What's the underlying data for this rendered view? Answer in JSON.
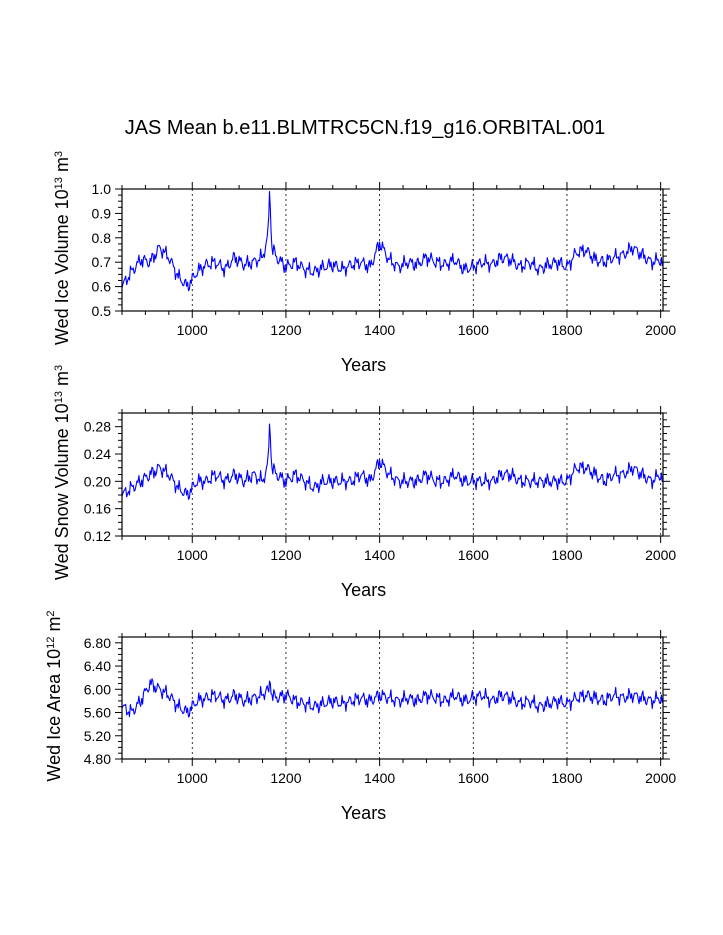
{
  "page_title": "JAS Mean b.e11.BLMTRC5CN.f19_g16.ORBITAL.001",
  "colors": {
    "series": "#0000ff",
    "axes": "#000000",
    "grid": "#000000"
  },
  "chart_data": [
    {
      "type": "line",
      "name": "wed-ice-volume",
      "ylabel": {
        "base": "Wed Ice Volume 10",
        "exp": "13",
        "unit": " m",
        "unit_exp": "3"
      },
      "xlabel": "Years",
      "xlim": [
        850,
        2005
      ],
      "ylim": [
        0.5,
        1.0
      ],
      "xticks": [
        1000,
        1200,
        1400,
        1600,
        1800,
        2000
      ],
      "xtick_labels": [
        "1000",
        "1200",
        "1400",
        "1600",
        "1800",
        "2000"
      ],
      "yticks": [
        0.5,
        0.6,
        0.7,
        0.8,
        0.9,
        1.0
      ],
      "ytick_labels": [
        "0.5",
        "0.6",
        "0.7",
        "0.8",
        "0.9",
        "1.0"
      ],
      "grid_x": "dashed vertical lines at major x ticks",
      "series": [
        {
          "name": "Wed Ice Volume",
          "x": [
            850,
            870,
            890,
            910,
            930,
            950,
            970,
            990,
            1010,
            1030,
            1050,
            1070,
            1090,
            1110,
            1130,
            1150,
            1160,
            1165,
            1170,
            1180,
            1200,
            1220,
            1240,
            1260,
            1280,
            1300,
            1320,
            1340,
            1360,
            1380,
            1400,
            1420,
            1440,
            1460,
            1480,
            1500,
            1520,
            1540,
            1560,
            1580,
            1600,
            1620,
            1640,
            1660,
            1680,
            1700,
            1720,
            1740,
            1760,
            1780,
            1800,
            1820,
            1840,
            1860,
            1880,
            1900,
            1920,
            1940,
            1960,
            1980,
            2000,
            2005
          ],
          "values": [
            0.6,
            0.66,
            0.71,
            0.7,
            0.76,
            0.72,
            0.64,
            0.6,
            0.66,
            0.69,
            0.7,
            0.67,
            0.72,
            0.69,
            0.7,
            0.72,
            0.79,
            0.98,
            0.76,
            0.72,
            0.68,
            0.7,
            0.67,
            0.66,
            0.68,
            0.69,
            0.67,
            0.69,
            0.7,
            0.68,
            0.78,
            0.71,
            0.68,
            0.7,
            0.69,
            0.72,
            0.7,
            0.69,
            0.71,
            0.67,
            0.68,
            0.7,
            0.69,
            0.72,
            0.71,
            0.68,
            0.7,
            0.67,
            0.69,
            0.7,
            0.68,
            0.74,
            0.75,
            0.71,
            0.7,
            0.72,
            0.73,
            0.76,
            0.73,
            0.7,
            0.71,
            0.69
          ]
        }
      ]
    },
    {
      "type": "line",
      "name": "wed-snow-volume",
      "ylabel": {
        "base": "Wed Snow Volume 10",
        "exp": "13",
        "unit": " m",
        "unit_exp": "3"
      },
      "xlabel": "Years",
      "xlim": [
        850,
        2005
      ],
      "ylim": [
        0.12,
        0.3
      ],
      "xticks": [
        1000,
        1200,
        1400,
        1600,
        1800,
        2000
      ],
      "xtick_labels": [
        "1000",
        "1200",
        "1400",
        "1600",
        "1800",
        "2000"
      ],
      "yticks": [
        0.12,
        0.16,
        0.2,
        0.24,
        0.28
      ],
      "ytick_labels": [
        "0.12",
        "0.16",
        "0.20",
        "0.24",
        "0.28"
      ],
      "grid_x": "dashed vertical lines at major x ticks",
      "series": [
        {
          "name": "Wed Snow Volume",
          "x": [
            850,
            870,
            890,
            910,
            930,
            950,
            970,
            990,
            1010,
            1030,
            1050,
            1070,
            1090,
            1110,
            1130,
            1150,
            1160,
            1165,
            1170,
            1180,
            1200,
            1220,
            1240,
            1260,
            1280,
            1300,
            1320,
            1340,
            1360,
            1380,
            1400,
            1420,
            1440,
            1460,
            1480,
            1500,
            1520,
            1540,
            1560,
            1580,
            1600,
            1620,
            1640,
            1660,
            1680,
            1700,
            1720,
            1740,
            1760,
            1780,
            1800,
            1820,
            1840,
            1860,
            1880,
            1900,
            1920,
            1940,
            1960,
            1980,
            2000,
            2005
          ],
          "values": [
            0.18,
            0.19,
            0.2,
            0.21,
            0.22,
            0.21,
            0.19,
            0.18,
            0.2,
            0.2,
            0.21,
            0.2,
            0.21,
            0.2,
            0.21,
            0.2,
            0.22,
            0.28,
            0.22,
            0.21,
            0.2,
            0.21,
            0.2,
            0.19,
            0.2,
            0.2,
            0.2,
            0.2,
            0.21,
            0.2,
            0.23,
            0.21,
            0.2,
            0.2,
            0.2,
            0.21,
            0.2,
            0.2,
            0.21,
            0.2,
            0.2,
            0.2,
            0.2,
            0.21,
            0.21,
            0.2,
            0.2,
            0.2,
            0.2,
            0.2,
            0.2,
            0.22,
            0.22,
            0.21,
            0.2,
            0.21,
            0.21,
            0.22,
            0.21,
            0.2,
            0.21,
            0.2
          ]
        }
      ]
    },
    {
      "type": "line",
      "name": "wed-ice-area",
      "ylabel": {
        "base": "Wed Ice Area 10",
        "exp": "12",
        "unit": " m",
        "unit_exp": "2"
      },
      "xlabel": "Years",
      "xlim": [
        850,
        2005
      ],
      "ylim": [
        4.8,
        6.9
      ],
      "xticks": [
        1000,
        1200,
        1400,
        1600,
        1800,
        2000
      ],
      "xtick_labels": [
        "1000",
        "1200",
        "1400",
        "1600",
        "1800",
        "2000"
      ],
      "yticks": [
        4.8,
        5.2,
        5.6,
        6.0,
        6.4,
        6.8
      ],
      "ytick_labels": [
        "4.80",
        "5.20",
        "5.60",
        "6.00",
        "6.40",
        "6.80"
      ],
      "grid_x": "dashed vertical lines at major x ticks",
      "series": [
        {
          "name": "Wed Ice Area",
          "x": [
            850,
            870,
            890,
            910,
            930,
            950,
            970,
            990,
            1010,
            1030,
            1050,
            1070,
            1090,
            1110,
            1130,
            1150,
            1160,
            1165,
            1170,
            1180,
            1200,
            1220,
            1240,
            1260,
            1280,
            1300,
            1320,
            1340,
            1360,
            1380,
            1400,
            1420,
            1440,
            1460,
            1480,
            1500,
            1520,
            1540,
            1560,
            1580,
            1600,
            1620,
            1640,
            1660,
            1680,
            1700,
            1720,
            1740,
            1760,
            1780,
            1800,
            1820,
            1840,
            1860,
            1880,
            1900,
            1920,
            1940,
            1960,
            1980,
            2000,
            2005
          ],
          "values": [
            5.7,
            5.6,
            5.8,
            6.1,
            6.0,
            5.9,
            5.7,
            5.6,
            5.8,
            5.85,
            5.9,
            5.8,
            5.9,
            5.8,
            5.85,
            5.9,
            6.0,
            6.1,
            5.9,
            5.85,
            5.9,
            5.8,
            5.75,
            5.7,
            5.75,
            5.8,
            5.75,
            5.8,
            5.85,
            5.8,
            5.9,
            5.85,
            5.8,
            5.85,
            5.8,
            5.9,
            5.85,
            5.8,
            5.9,
            5.8,
            5.85,
            5.9,
            5.8,
            5.9,
            5.85,
            5.75,
            5.8,
            5.7,
            5.75,
            5.8,
            5.75,
            5.85,
            5.9,
            5.85,
            5.8,
            5.9,
            5.85,
            5.9,
            5.85,
            5.8,
            5.85,
            5.8
          ]
        }
      ]
    }
  ]
}
